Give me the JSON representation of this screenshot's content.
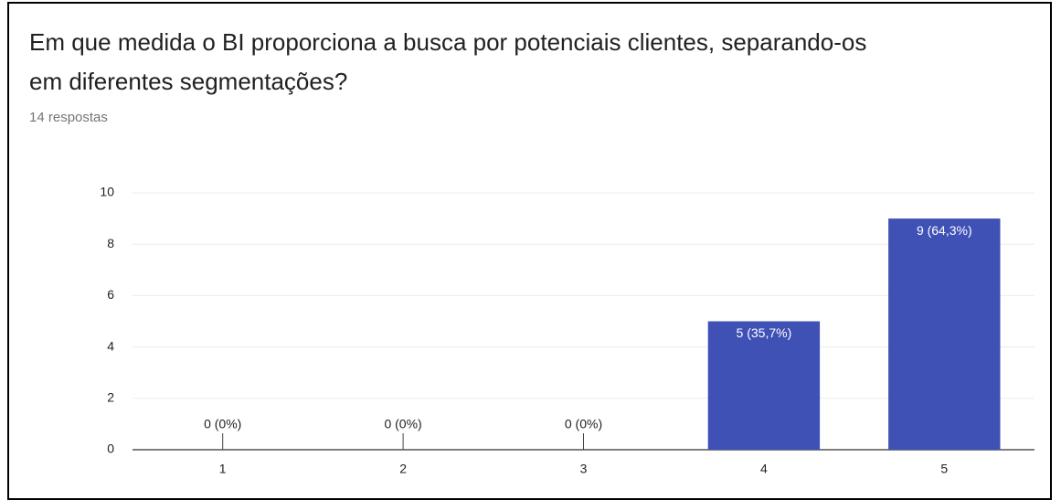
{
  "chart_data": {
    "type": "bar",
    "title": "Em que medida o BI proporciona a busca por potenciais clientes, separando-os em diferentes segmentações?",
    "subtitle": "14 respostas",
    "categories": [
      "1",
      "2",
      "3",
      "4",
      "5"
    ],
    "values": [
      0,
      0,
      0,
      5,
      9
    ],
    "value_labels": [
      "0 (0%)",
      "0 (0%)",
      "0 (0%)",
      "5 (35,7%)",
      "9 (64,3%)"
    ],
    "color": "#3f51b5",
    "ylim": [
      0,
      10
    ],
    "yticks": [
      0,
      2,
      4,
      6,
      8,
      10
    ],
    "grid": true
  }
}
